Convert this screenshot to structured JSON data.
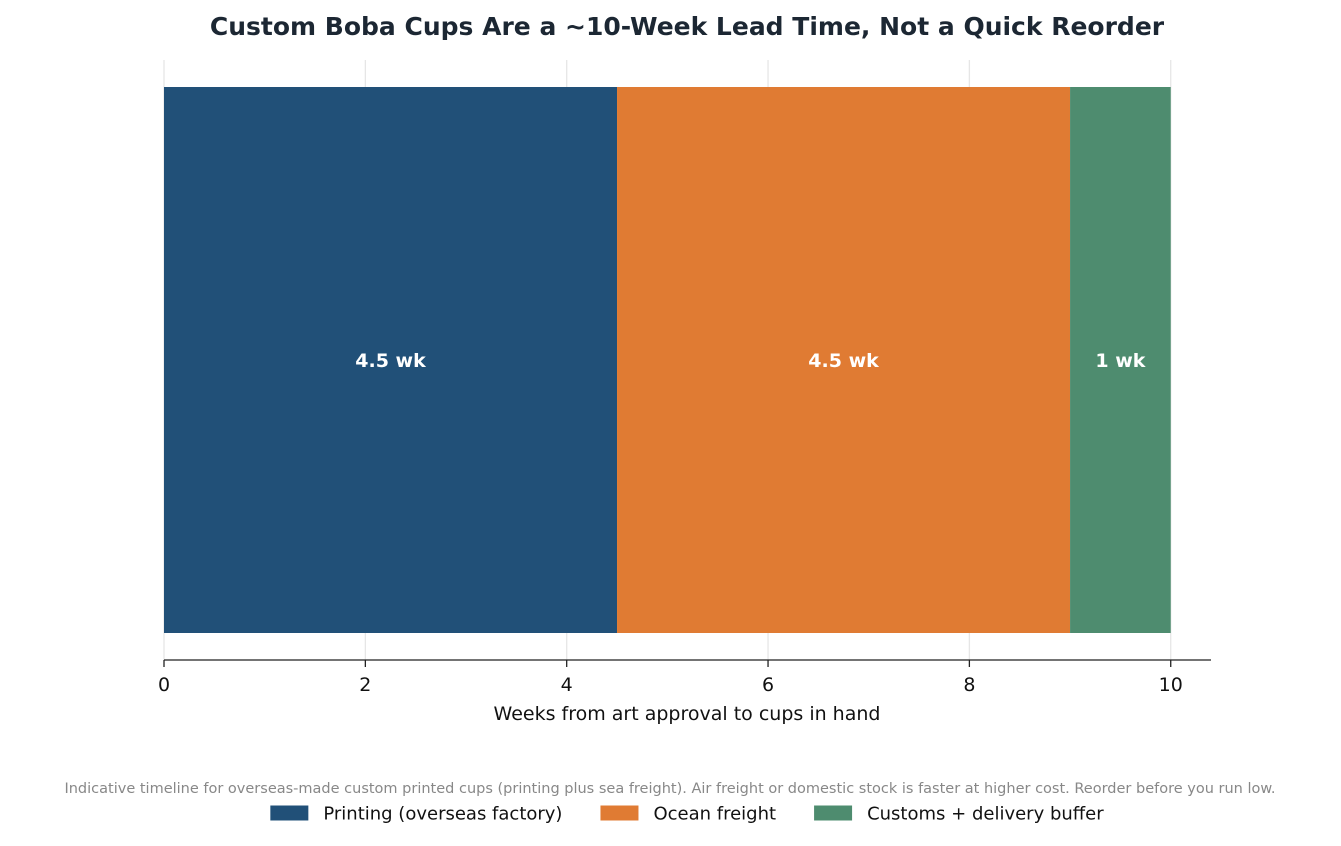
{
  "chart_data": {
    "type": "bar",
    "orientation": "horizontal",
    "stacked": true,
    "title": "Custom Boba Cups Are a ~10-Week Lead Time, Not a Quick Reorder",
    "xlabel": "Weeks from art approval to cups in hand",
    "ylabel": "",
    "xlim": [
      0,
      10.4
    ],
    "xticks": [
      0,
      2,
      4,
      6,
      8,
      10
    ],
    "grid": "vertical",
    "legend_position": "bottom",
    "series": [
      {
        "name": "Printing (overseas factory)",
        "value": 4.5,
        "label": "4.5 wk",
        "color": "#215078"
      },
      {
        "name": "Ocean freight",
        "value": 4.5,
        "label": "4.5 wk",
        "color": "#e07b33"
      },
      {
        "name": "Customs + delivery buffer",
        "value": 1,
        "label": "1 wk",
        "color": "#4e8c6f"
      }
    ],
    "footnote": "Indicative timeline for overseas-made custom printed cups (printing plus sea freight). Air freight or domestic stock is faster at higher cost. Reorder before you run low."
  }
}
